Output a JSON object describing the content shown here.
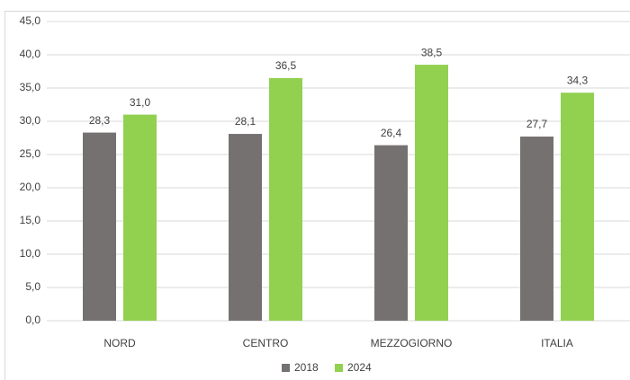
{
  "chart_data": {
    "type": "bar",
    "categories": [
      "NORD",
      "CENTRO",
      "MEZZOGIORNO",
      "ITALIA"
    ],
    "series": [
      {
        "name": "2018",
        "color": "#767171",
        "values": [
          28.3,
          28.1,
          26.4,
          27.7
        ],
        "value_labels": [
          "28,3",
          "28,1",
          "26,4",
          "27,7"
        ]
      },
      {
        "name": "2024",
        "color": "#92d050",
        "values": [
          31.0,
          36.5,
          38.5,
          34.3
        ],
        "value_labels": [
          "31,0",
          "36,5",
          "38,5",
          "34,3"
        ]
      }
    ],
    "ylim": [
      0,
      45
    ],
    "yticks": [
      {
        "value": 0,
        "label": "0,0"
      },
      {
        "value": 5,
        "label": "5,0"
      },
      {
        "value": 10,
        "label": "10,0"
      },
      {
        "value": 15,
        "label": "15,0"
      },
      {
        "value": 20,
        "label": "20,0"
      },
      {
        "value": 25,
        "label": "25,0"
      },
      {
        "value": 30,
        "label": "30,0"
      },
      {
        "value": 35,
        "label": "35,0"
      },
      {
        "value": 40,
        "label": "40,0"
      },
      {
        "value": 45,
        "label": "45,0"
      }
    ],
    "grid": true,
    "legend": "bottom"
  }
}
